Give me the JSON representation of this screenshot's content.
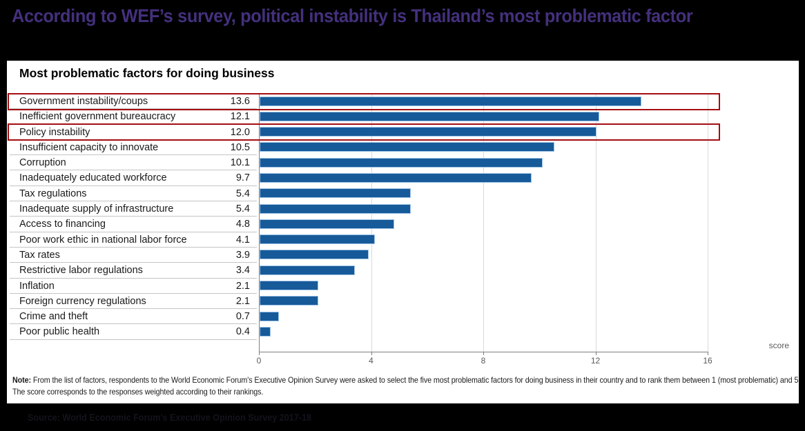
{
  "page": {
    "title": "According to WEF’s survey, political instability is Thailand’s most problematic factor",
    "title_color": "#44307d",
    "background_color": "#000000",
    "source": "Source: World Economic Forum’s Executive Opinion Survey 2017-18"
  },
  "chart_data": {
    "type": "bar",
    "orientation": "horizontal",
    "title": "Most problematic factors for doing business",
    "categories": [
      "Government instability/coups",
      "Inefficient government bureaucracy",
      "Policy instability",
      "Insufficient capacity to innovate",
      "Corruption",
      "Inadequately educated workforce",
      "Tax regulations",
      "Inadequate supply of infrastructure",
      "Access to financing",
      "Poor work ethic in national labor force",
      "Tax rates",
      "Restrictive labor regulations",
      "Inflation",
      "Foreign currency regulations",
      "Crime and theft",
      "Poor public health"
    ],
    "values": [
      13.6,
      12.1,
      12.0,
      10.5,
      10.1,
      9.7,
      5.4,
      5.4,
      4.8,
      4.1,
      3.9,
      3.4,
      2.1,
      2.1,
      0.7,
      0.4
    ],
    "value_labels": [
      "13.6",
      "12.1",
      "12.0",
      "10.5",
      "10.1",
      "9.7",
      "5.4",
      "5.4",
      "4.8",
      "4.1",
      "3.9",
      "3.4",
      "2.1",
      "2.1",
      "0.7",
      "0.4"
    ],
    "xlabel": "score",
    "xlim": [
      0,
      16
    ],
    "xticks": [
      0,
      4,
      8,
      12,
      16
    ],
    "grid": true,
    "legend": "none",
    "bar_color": "#175a99",
    "highlighted_rows": [
      0,
      2
    ],
    "highlight_color": "#a40d11"
  },
  "note": {
    "label": "Note:",
    "text": " From the list of factors, respondents to the World Economic Forum's Executive Opinion Survey were asked to select the five most problematic factors for doing business in their country and to rank them between 1 (most problematic) and 5. The score corresponds to the responses weighted according to their rankings."
  }
}
